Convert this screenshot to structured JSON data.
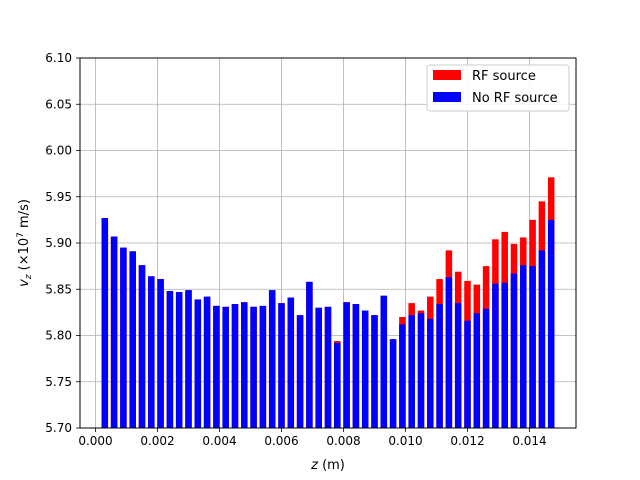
{
  "chart_data": {
    "type": "bar",
    "xlabel_var": "z",
    "xlabel_unit": " (m)",
    "ylabel_var": "v",
    "ylabel_sub": "z",
    "ylabel_pre": " (×10",
    "ylabel_exp": "7",
    "ylabel_post": " m/s)",
    "xlim": [
      -0.0005,
      0.0155
    ],
    "ylim": [
      5.7,
      6.1
    ],
    "xticks": [
      0.0,
      0.002,
      0.004,
      0.006,
      0.008,
      0.01,
      0.012,
      0.014
    ],
    "xtick_labels": [
      "0.000",
      "0.002",
      "0.004",
      "0.006",
      "0.008",
      "0.010",
      "0.012",
      "0.014"
    ],
    "yticks": [
      5.7,
      5.75,
      5.8,
      5.85,
      5.9,
      5.95,
      6.0,
      6.05,
      6.1
    ],
    "ytick_labels": [
      "5.70",
      "5.75",
      "5.80",
      "5.85",
      "5.90",
      "5.95",
      "6.00",
      "6.05",
      "6.10"
    ],
    "grid": true,
    "legend_position": "top-right",
    "bar_width": 0.00021,
    "x": [
      0.0003,
      0.0006,
      0.0009,
      0.0012,
      0.0015,
      0.0018,
      0.0021,
      0.0024,
      0.0027,
      0.003,
      0.0033,
      0.0036,
      0.0039,
      0.0042,
      0.0045,
      0.0048,
      0.0051,
      0.0054,
      0.0057,
      0.006,
      0.0063,
      0.0066,
      0.0069,
      0.0072,
      0.0075,
      0.0078,
      0.0081,
      0.0084,
      0.0087,
      0.009,
      0.0093,
      0.0096,
      0.0099,
      0.0102,
      0.0105,
      0.0108,
      0.0111,
      0.0114,
      0.0117,
      0.012,
      0.0123,
      0.0126,
      0.0129,
      0.0132,
      0.0135,
      0.0138,
      0.0141,
      0.0144,
      0.0147
    ],
    "series": [
      {
        "name": "RF source",
        "color": "#ff0000",
        "values": [
          5.927,
          5.907,
          5.895,
          5.891,
          5.876,
          5.864,
          5.861,
          5.848,
          5.847,
          5.849,
          5.839,
          5.842,
          5.832,
          5.831,
          5.834,
          5.836,
          5.831,
          5.832,
          5.849,
          5.835,
          5.841,
          5.822,
          5.858,
          5.83,
          5.831,
          5.794,
          5.836,
          5.834,
          5.827,
          5.822,
          5.843,
          5.796,
          5.82,
          5.835,
          5.827,
          5.842,
          5.861,
          5.892,
          5.869,
          5.859,
          5.855,
          5.875,
          5.904,
          5.912,
          5.899,
          5.906,
          5.925,
          5.945,
          5.971
        ]
      },
      {
        "name": "No RF source",
        "color": "#0000ff",
        "values": [
          5.927,
          5.907,
          5.895,
          5.891,
          5.876,
          5.864,
          5.861,
          5.848,
          5.847,
          5.849,
          5.839,
          5.842,
          5.832,
          5.831,
          5.834,
          5.836,
          5.831,
          5.832,
          5.849,
          5.835,
          5.841,
          5.822,
          5.858,
          5.83,
          5.831,
          5.792,
          5.836,
          5.834,
          5.827,
          5.822,
          5.843,
          5.796,
          5.812,
          5.822,
          5.824,
          5.818,
          5.834,
          5.863,
          5.835,
          5.816,
          5.824,
          5.829,
          5.856,
          5.857,
          5.867,
          5.876,
          5.875,
          5.892,
          5.925
        ]
      }
    ]
  }
}
